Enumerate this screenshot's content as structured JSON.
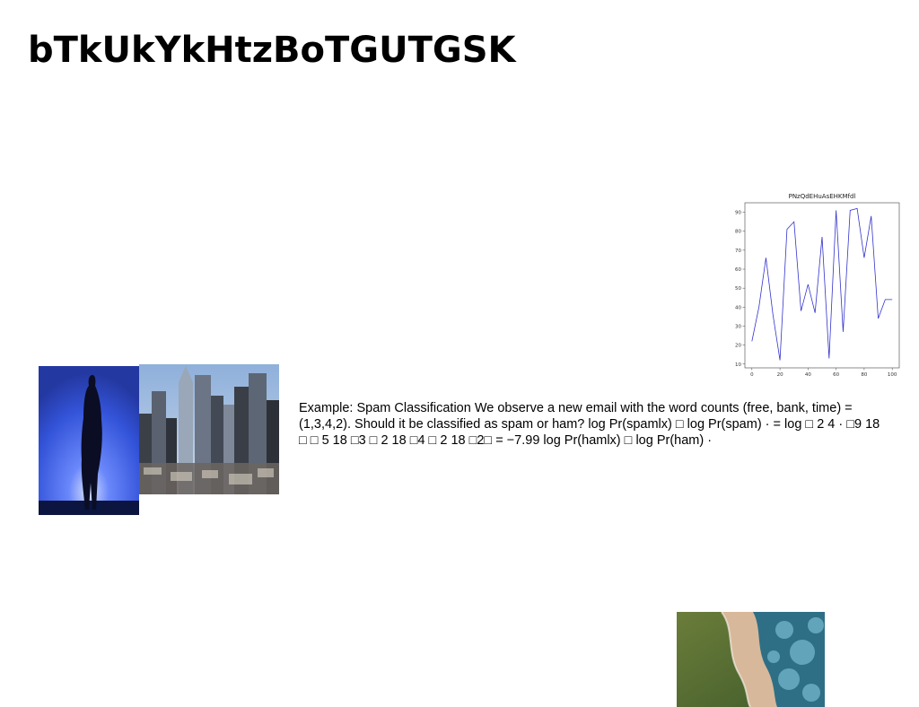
{
  "title": "bTkUkYkHtzBoTGUTGSK",
  "body_text": "Example: Spam Classification We observe a new email with the word counts (free, bank, time) = (1,3,4,2). Should it be classified as spam or ham? log Pr(spamlx) □ log Pr(spam) · = log □ 2 4 · □9 18 □ □ 5 18 □3 □ 2 18 □4 □ 2 18 □2□ = −7.99 log Pr(hamlx) □ log Pr(ham) ·",
  "images": [
    {
      "name": "silhouette-photo",
      "description": "person silhouette against blue light"
    },
    {
      "name": "city-skyline-photo",
      "description": "city skyscrapers"
    },
    {
      "name": "coast-aerial-photo",
      "description": "aerial view of coastline"
    }
  ],
  "chart_data": {
    "type": "line",
    "title": "PNzQdEHuAsEHKMfdl",
    "xlabel": "",
    "ylabel": "",
    "x": [
      0,
      5,
      10,
      15,
      20,
      25,
      30,
      35,
      40,
      45,
      50,
      55,
      60,
      65,
      70,
      75,
      80,
      85,
      90,
      95,
      100
    ],
    "series": [
      {
        "values": [
          22,
          40,
          66,
          36,
          12,
          81,
          85,
          38,
          52,
          37,
          77,
          13,
          91,
          27,
          91,
          92,
          66,
          88,
          34,
          44,
          44
        ],
        "color": "#3333cc"
      }
    ],
    "x_ticks": [
      0,
      20,
      40,
      60,
      80,
      100
    ],
    "y_ticks": [
      10,
      20,
      30,
      40,
      50,
      60,
      70,
      80,
      90
    ],
    "xlim": [
      -5,
      105
    ],
    "ylim": [
      8,
      95
    ],
    "grid": false,
    "legend": "none"
  }
}
